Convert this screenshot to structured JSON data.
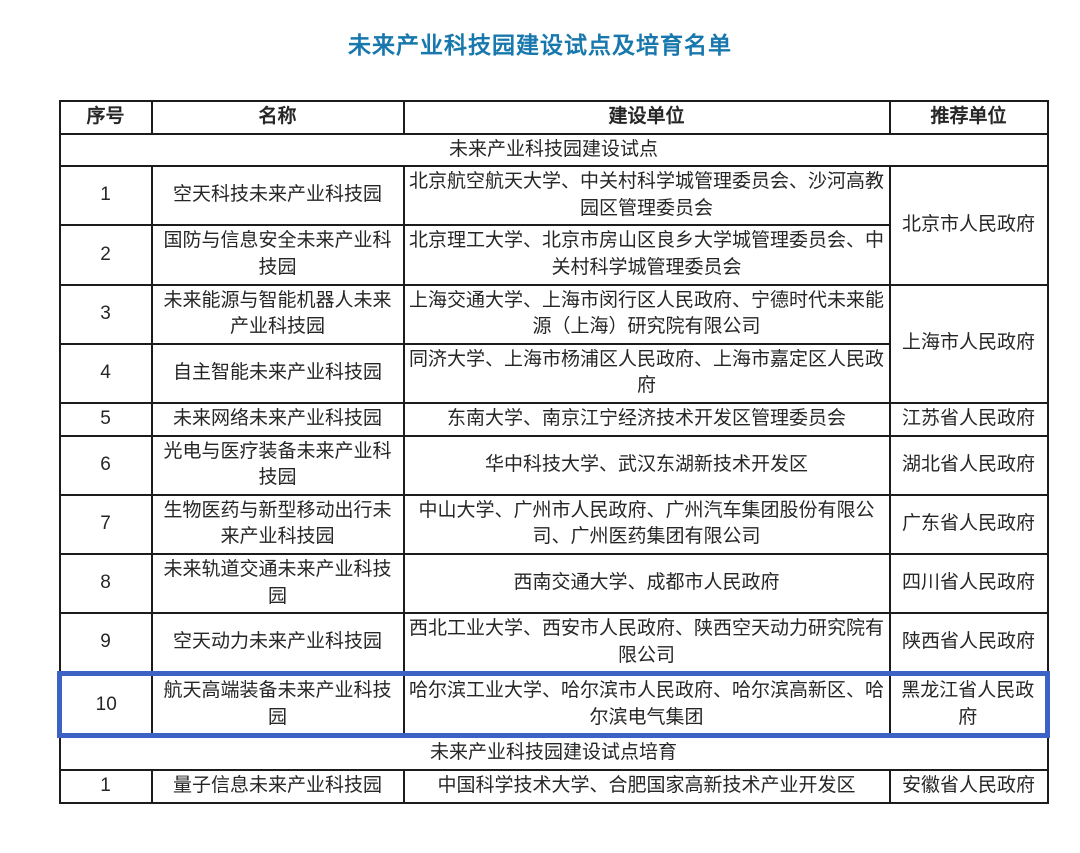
{
  "page_title": "未来产业科技园建设试点及培育名单",
  "colors": {
    "title_blue": "#1878ad",
    "highlight_blue": "#3c62c5",
    "table_border": "#1c1c1c",
    "text": "#262626",
    "background": "#ffffff"
  },
  "table": {
    "headers": [
      "序号",
      "名称",
      "建设单位",
      "推荐单位"
    ],
    "sections": [
      {
        "section_title": "未来产业科技园建设试点",
        "rows": [
          {
            "no": "1",
            "name": "空天科技未来产业科技园",
            "builders": "北京航空航天大学、中关村科学城管理委员会、沙河高教园区管理委员会",
            "recommender": "北京市人民政府",
            "recommender_rowspan": 2
          },
          {
            "no": "2",
            "name": "国防与信息安全未来产业科技园",
            "builders": "北京理工大学、北京市房山区良乡大学城管理委员会、中关村科学城管理委员会"
          },
          {
            "no": "3",
            "name": "未来能源与智能机器人未来产业科技园",
            "builders": "上海交通大学、上海市闵行区人民政府、宁德时代未来能源（上海）研究院有限公司",
            "recommender": "上海市人民政府",
            "recommender_rowspan": 2
          },
          {
            "no": "4",
            "name": "自主智能未来产业科技园",
            "builders": "同济大学、上海市杨浦区人民政府、上海市嘉定区人民政府"
          },
          {
            "no": "5",
            "name": "未来网络未来产业科技园",
            "builders": "东南大学、南京江宁经济技术开发区管理委员会",
            "recommender": "江苏省人民政府"
          },
          {
            "no": "6",
            "name": "光电与医疗装备未来产业科技园",
            "builders": "华中科技大学、武汉东湖新技术开发区",
            "recommender": "湖北省人民政府"
          },
          {
            "no": "7",
            "name": "生物医药与新型移动出行未来产业科技园",
            "builders": "中山大学、广州市人民政府、广州汽车集团股份有限公司、广州医药集团有限公司",
            "recommender": "广东省人民政府"
          },
          {
            "no": "8",
            "name": "未来轨道交通未来产业科技园",
            "builders": "西南交通大学、成都市人民政府",
            "recommender": "四川省人民政府"
          },
          {
            "no": "9",
            "name": "空天动力未来产业科技园",
            "builders": "西北工业大学、西安市人民政府、陕西空天动力研究院有限公司",
            "recommender": "陕西省人民政府"
          },
          {
            "no": "10",
            "name": "航天高端装备未来产业科技园",
            "builders": "哈尔滨工业大学、哈尔滨市人民政府、哈尔滨高新区、哈尔滨电气集团",
            "recommender": "黑龙江省人民政府",
            "highlighted": true
          }
        ]
      },
      {
        "section_title": "未来产业科技园建设试点培育",
        "rows": [
          {
            "no": "1",
            "name": "量子信息未来产业科技园",
            "builders": "中国科学技术大学、合肥国家高新技术产业开发区",
            "recommender": "安徽省人民政府"
          }
        ]
      }
    ]
  }
}
